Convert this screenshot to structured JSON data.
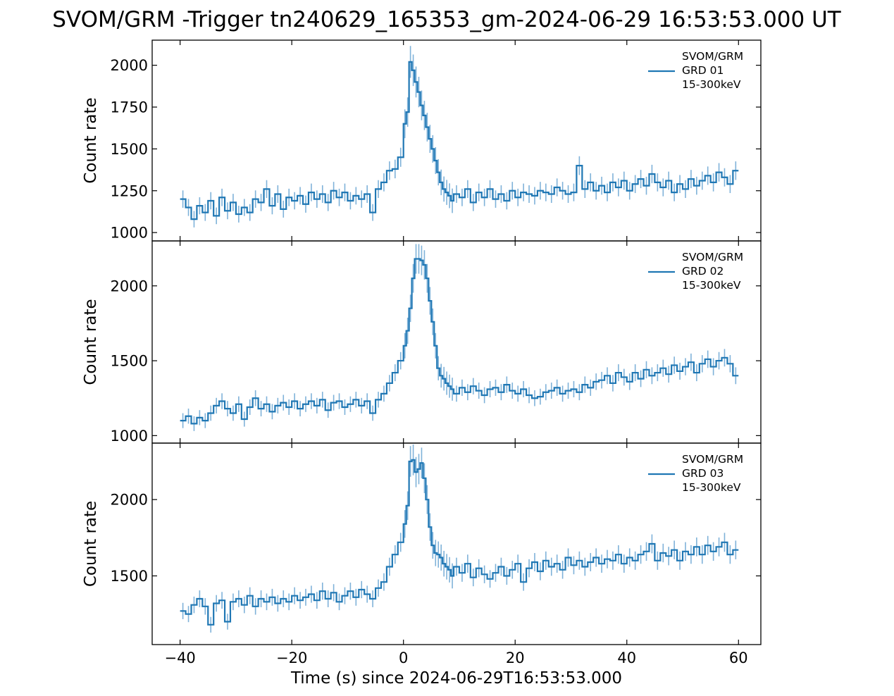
{
  "figure": {
    "title": "SVOM/GRM -Trigger tn240629_165353_gm-2024-06-29 16:53:53.000 UT",
    "xlabel": "Time (s) since 2024-06-29T16:53:53.000",
    "series_color": "#1f77b4",
    "errorbar_color": "#7fb2d9"
  },
  "chart_data": [
    {
      "type": "line",
      "step": true,
      "error_bars": true,
      "ylabel": "Count rate",
      "legend": [
        "SVOM/GRM",
        "GRD 01",
        "15-300keV"
      ],
      "legend_position": "top-right",
      "xlim": [
        -45,
        64
      ],
      "ylim": [
        950,
        2150
      ],
      "xticks": [
        -40,
        -20,
        0,
        20,
        40,
        60
      ],
      "xtick_labels": [
        "−40",
        "−20",
        "0",
        "20",
        "40",
        "60"
      ],
      "yticks": [
        1000,
        1250,
        1500,
        1750,
        2000
      ],
      "ytick_labels": [
        "1000",
        "1250",
        "1500",
        "1750",
        "2000"
      ],
      "x": [
        -40,
        -39,
        -38,
        -37,
        -36,
        -35,
        -34,
        -33,
        -32,
        -31,
        -30,
        -29,
        -28,
        -27,
        -26,
        -25,
        -24,
        -23,
        -22,
        -21,
        -20,
        -19,
        -18,
        -17,
        -16,
        -15,
        -14,
        -13,
        -12,
        -11,
        -10,
        -9,
        -8,
        -7,
        -6,
        -5,
        -4,
        -3,
        -2,
        -1,
        0,
        0.5,
        1,
        1.5,
        2,
        2.5,
        3,
        3.5,
        4,
        4.5,
        5,
        5.5,
        6,
        6.5,
        7,
        7.5,
        8,
        8.5,
        9,
        10,
        11,
        12,
        13,
        14,
        15,
        16,
        17,
        18,
        19,
        20,
        21,
        22,
        23,
        24,
        25,
        26,
        27,
        28,
        29,
        30,
        31,
        32,
        33,
        34,
        35,
        36,
        37,
        38,
        39,
        40,
        41,
        42,
        43,
        44,
        45,
        46,
        47,
        48,
        49,
        50,
        51,
        52,
        53,
        54,
        55,
        56,
        57,
        58,
        59
      ],
      "y": [
        1200,
        1150,
        1080,
        1160,
        1120,
        1190,
        1100,
        1210,
        1130,
        1180,
        1110,
        1150,
        1120,
        1200,
        1180,
        1260,
        1160,
        1230,
        1140,
        1210,
        1190,
        1220,
        1170,
        1240,
        1200,
        1230,
        1180,
        1250,
        1210,
        1240,
        1190,
        1220,
        1200,
        1230,
        1120,
        1260,
        1300,
        1370,
        1380,
        1450,
        1650,
        1720,
        2020,
        1970,
        1900,
        1840,
        1760,
        1700,
        1630,
        1560,
        1500,
        1430,
        1360,
        1300,
        1260,
        1240,
        1220,
        1190,
        1230,
        1210,
        1260,
        1180,
        1240,
        1210,
        1260,
        1200,
        1230,
        1190,
        1250,
        1210,
        1240,
        1230,
        1220,
        1250,
        1240,
        1230,
        1270,
        1250,
        1230,
        1240,
        1400,
        1260,
        1300,
        1250,
        1280,
        1240,
        1300,
        1270,
        1310,
        1250,
        1290,
        1320,
        1280,
        1350,
        1300,
        1270,
        1310,
        1240,
        1290,
        1260,
        1320,
        1280,
        1310,
        1340,
        1300,
        1360,
        1330,
        1290,
        1370
      ]
    },
    {
      "type": "line",
      "step": true,
      "error_bars": true,
      "ylabel": "Count rate",
      "legend": [
        "SVOM/GRM",
        "GRD 02",
        "15-300keV"
      ],
      "legend_position": "top-right",
      "xlim": [
        -45,
        64
      ],
      "ylim": [
        950,
        2300
      ],
      "xticks": [
        -40,
        -20,
        0,
        20,
        40,
        60
      ],
      "xtick_labels": [
        "−40",
        "−20",
        "0",
        "20",
        "40",
        "60"
      ],
      "yticks": [
        1000,
        1500,
        2000
      ],
      "ytick_labels": [
        "1000",
        "1500",
        "2000"
      ],
      "x": [
        -40,
        -39,
        -38,
        -37,
        -36,
        -35,
        -34,
        -33,
        -32,
        -31,
        -30,
        -29,
        -28,
        -27,
        -26,
        -25,
        -24,
        -23,
        -22,
        -21,
        -20,
        -19,
        -18,
        -17,
        -16,
        -15,
        -14,
        -13,
        -12,
        -11,
        -10,
        -9,
        -8,
        -7,
        -6,
        -5,
        -4,
        -3,
        -2,
        -1,
        0,
        0.5,
        1,
        1.5,
        2,
        2.5,
        3,
        3.5,
        4,
        4.5,
        5,
        5.5,
        6,
        6.5,
        7,
        7.5,
        8,
        8.5,
        9,
        10,
        11,
        12,
        13,
        14,
        15,
        16,
        17,
        18,
        19,
        20,
        21,
        22,
        23,
        24,
        25,
        26,
        27,
        28,
        29,
        30,
        31,
        32,
        33,
        34,
        35,
        36,
        37,
        38,
        39,
        40,
        41,
        42,
        43,
        44,
        45,
        46,
        47,
        48,
        49,
        50,
        51,
        52,
        53,
        54,
        55,
        56,
        57,
        58,
        59
      ],
      "y": [
        1100,
        1130,
        1080,
        1120,
        1100,
        1150,
        1200,
        1230,
        1180,
        1150,
        1210,
        1110,
        1190,
        1250,
        1180,
        1210,
        1160,
        1200,
        1220,
        1190,
        1230,
        1180,
        1210,
        1230,
        1200,
        1240,
        1170,
        1220,
        1230,
        1190,
        1210,
        1240,
        1200,
        1230,
        1150,
        1240,
        1280,
        1350,
        1420,
        1500,
        1600,
        1700,
        1850,
        2050,
        2180,
        2180,
        2170,
        2140,
        2050,
        1900,
        1760,
        1600,
        1450,
        1400,
        1380,
        1350,
        1330,
        1310,
        1280,
        1320,
        1290,
        1330,
        1300,
        1270,
        1310,
        1320,
        1290,
        1340,
        1300,
        1280,
        1310,
        1270,
        1250,
        1260,
        1290,
        1300,
        1320,
        1280,
        1300,
        1310,
        1290,
        1340,
        1320,
        1360,
        1370,
        1400,
        1350,
        1420,
        1390,
        1360,
        1420,
        1380,
        1440,
        1400,
        1420,
        1450,
        1410,
        1470,
        1430,
        1460,
        1490,
        1420,
        1480,
        1510,
        1460,
        1500,
        1520,
        1480,
        1400
      ]
    },
    {
      "type": "line",
      "step": true,
      "error_bars": true,
      "ylabel": "Count rate",
      "legend": [
        "SVOM/GRM",
        "GRD 03",
        "15-300keV"
      ],
      "legend_position": "top-right",
      "xlim": [
        -45,
        64
      ],
      "ylim": [
        1050,
        2370
      ],
      "xticks": [
        -40,
        -20,
        0,
        20,
        40,
        60
      ],
      "xtick_labels": [
        "−40",
        "−20",
        "0",
        "20",
        "40",
        "60"
      ],
      "yticks": [
        1500,
        2000
      ],
      "ytick_labels": [
        "1500",
        "2000"
      ],
      "x": [
        -40,
        -39,
        -38,
        -37,
        -36,
        -35,
        -34,
        -33,
        -32,
        -31,
        -30,
        -29,
        -28,
        -27,
        -26,
        -25,
        -24,
        -23,
        -22,
        -21,
        -20,
        -19,
        -18,
        -17,
        -16,
        -15,
        -14,
        -13,
        -12,
        -11,
        -10,
        -9,
        -8,
        -7,
        -6,
        -5,
        -4,
        -3,
        -2,
        -1,
        0,
        0.5,
        1,
        1.5,
        2,
        2.5,
        3,
        3.5,
        4,
        4.5,
        5,
        5.5,
        6,
        6.5,
        7,
        7.5,
        8,
        8.5,
        9,
        10,
        11,
        12,
        13,
        14,
        15,
        16,
        17,
        18,
        19,
        20,
        21,
        22,
        23,
        24,
        25,
        26,
        27,
        28,
        29,
        30,
        31,
        32,
        33,
        34,
        35,
        36,
        37,
        38,
        39,
        40,
        41,
        42,
        43,
        44,
        45,
        46,
        47,
        48,
        49,
        50,
        51,
        52,
        53,
        54,
        55,
        56,
        57,
        58,
        59
      ],
      "y": [
        1270,
        1250,
        1310,
        1350,
        1300,
        1180,
        1320,
        1340,
        1200,
        1330,
        1350,
        1310,
        1370,
        1300,
        1350,
        1330,
        1360,
        1320,
        1350,
        1330,
        1370,
        1340,
        1360,
        1380,
        1340,
        1400,
        1350,
        1390,
        1330,
        1370,
        1400,
        1360,
        1410,
        1380,
        1350,
        1420,
        1460,
        1560,
        1640,
        1720,
        1840,
        1960,
        2250,
        2260,
        2180,
        2200,
        2240,
        2140,
        2000,
        1820,
        1700,
        1650,
        1640,
        1620,
        1580,
        1560,
        1540,
        1500,
        1560,
        1520,
        1580,
        1490,
        1550,
        1510,
        1480,
        1520,
        1560,
        1500,
        1540,
        1580,
        1460,
        1550,
        1590,
        1530,
        1600,
        1560,
        1580,
        1540,
        1620,
        1570,
        1600,
        1560,
        1590,
        1620,
        1580,
        1610,
        1600,
        1640,
        1580,
        1620,
        1600,
        1640,
        1660,
        1710,
        1600,
        1650,
        1630,
        1670,
        1600,
        1660,
        1640,
        1690,
        1640,
        1700,
        1660,
        1690,
        1720,
        1640,
        1670
      ]
    }
  ]
}
